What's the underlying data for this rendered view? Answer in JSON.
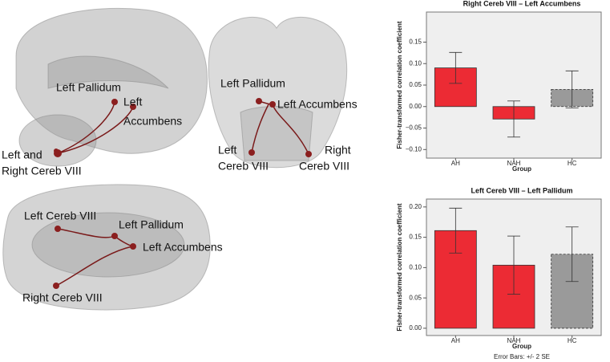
{
  "chart_data": [
    {
      "type": "bar",
      "title": "Right Cereb VIII – Left Accumbens",
      "x_label": "Group",
      "y_label": "Fisher-transformed correlation coefficient",
      "categories": [
        "AH",
        "NAH",
        "HC"
      ],
      "values": [
        0.09,
        -0.029,
        0.04
      ],
      "errors": [
        0.036,
        0.042,
        0.043
      ],
      "colors": [
        "#ec2b34",
        "#ec2b34",
        "#9a9a9a"
      ],
      "dashed": [
        false,
        false,
        true
      ],
      "ylim": [
        -0.12,
        0.22
      ],
      "yticks": [
        {
          "value": -0.1,
          "label": "−0.10"
        },
        {
          "value": -0.05,
          "label": "−0.05"
        },
        {
          "value": 0,
          "label": "0.00"
        },
        {
          "value": 0.05,
          "label": "0.05"
        },
        {
          "value": 0.1,
          "label": "0.10"
        },
        {
          "value": 0.15,
          "label": "0.15"
        }
      ]
    },
    {
      "type": "bar",
      "title": "Left Cereb VIII – Left Pallidum",
      "x_label": "Group",
      "y_label": "Fisher-transformed correlation coefficient",
      "categories": [
        "AH",
        "NAH",
        "HC"
      ],
      "values": [
        0.161,
        0.104,
        0.122
      ],
      "errors": [
        0.037,
        0.048,
        0.045
      ],
      "colors": [
        "#ec2b34",
        "#ec2b34",
        "#9a9a9a"
      ],
      "dashed": [
        false,
        false,
        true
      ],
      "ylim": [
        -0.012,
        0.213
      ],
      "yticks": [
        {
          "value": 0,
          "label": "0.00"
        },
        {
          "value": 0.05,
          "label": "0.05"
        },
        {
          "value": 0.1,
          "label": "0.10"
        },
        {
          "value": 0.15,
          "label": "0.15"
        },
        {
          "value": 0.2,
          "label": "0.20"
        }
      ],
      "footnote": "Error Bars: +/- 2 SE"
    }
  ],
  "brain_views": [
    {
      "labels": [
        "Left Pallidum",
        "Left",
        "Accumbens",
        "Left and",
        "Right Cereb VIII"
      ]
    },
    {
      "labels": [
        "Left Pallidum",
        "Left Accumbens",
        "Left",
        "Cereb VIII",
        "Right",
        "Cereb VIII"
      ]
    },
    {
      "labels": [
        "Left Cereb VIII",
        "Left Pallidum",
        "Left Accumbens",
        "Right Cereb VIII"
      ]
    }
  ]
}
